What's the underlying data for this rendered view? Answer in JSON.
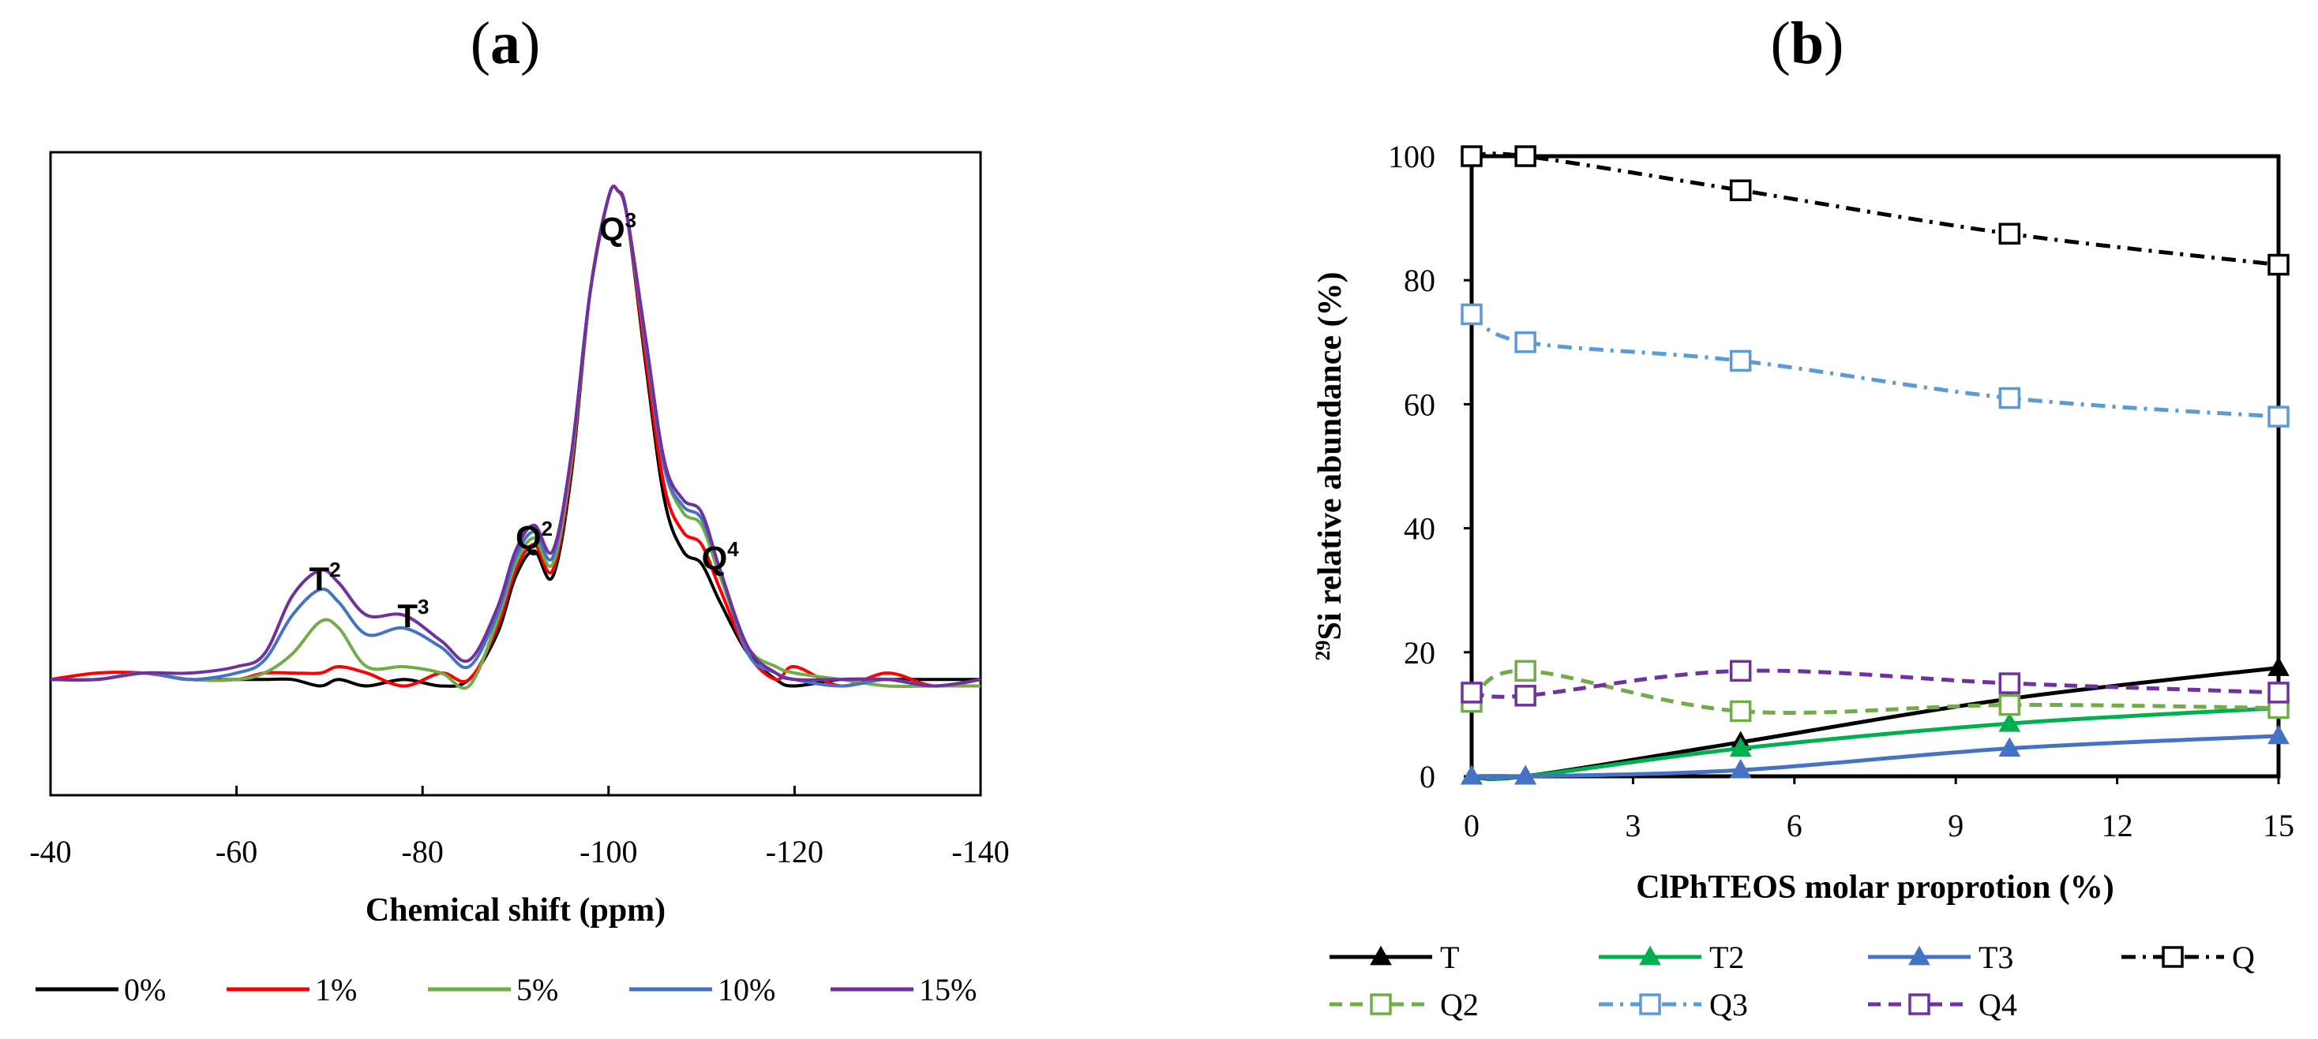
{
  "chart_data": [
    {
      "panel": "(a)",
      "panel_title_parts": [
        "(",
        "a",
        ")"
      ],
      "type": "line",
      "title": "(a)",
      "xlabel": "Chemical shift (ppm)",
      "ylabel": "",
      "xlim": [
        -40,
        -140
      ],
      "ylim": [
        0,
        1
      ],
      "xticks": [
        -40,
        -60,
        -80,
        -100,
        -120,
        -140
      ],
      "xtick_labels": [
        "-40",
        "-60",
        "-80",
        "-100",
        "-120",
        "-140"
      ],
      "grid": false,
      "legend_position": "bottom",
      "peak_annotations": [
        {
          "label": "T2",
          "base": "T",
          "sup": "2",
          "x": -69.5
        },
        {
          "label": "T3",
          "base": "T",
          "sup": "3",
          "x": -79
        },
        {
          "label": "Q2",
          "base": "Q",
          "sup": "2",
          "x": -92
        },
        {
          "label": "Q3",
          "base": "Q",
          "sup": "3",
          "x": -101
        },
        {
          "label": "Q4",
          "base": "Q",
          "sup": "4",
          "x": -112
        }
      ],
      "series": [
        {
          "name": "0%",
          "label": "0%",
          "color": "#000000",
          "x": [
            -40,
            -45,
            -50,
            -55,
            -60,
            -63,
            -66,
            -69,
            -71,
            -74,
            -78,
            -82,
            -85,
            -88,
            -90,
            -92,
            -94,
            -96,
            -98,
            -100,
            -101,
            -102,
            -104,
            -106,
            -108,
            -110,
            -112,
            -115,
            -118,
            -120,
            -125,
            -130,
            -135,
            -140
          ],
          "y": [
            0.18,
            0.18,
            0.19,
            0.18,
            0.18,
            0.18,
            0.18,
            0.17,
            0.18,
            0.17,
            0.18,
            0.17,
            0.18,
            0.25,
            0.34,
            0.38,
            0.34,
            0.5,
            0.78,
            0.93,
            0.94,
            0.9,
            0.67,
            0.46,
            0.38,
            0.36,
            0.3,
            0.22,
            0.18,
            0.17,
            0.18,
            0.18,
            0.18,
            0.18
          ]
        },
        {
          "name": "1%",
          "label": "1%",
          "color": "#ff0000",
          "x": [
            -40,
            -45,
            -50,
            -55,
            -60,
            -63,
            -66,
            -69,
            -71,
            -74,
            -78,
            -82,
            -85,
            -88,
            -90,
            -92,
            -94,
            -96,
            -98,
            -100,
            -101,
            -102,
            -104,
            -106,
            -108,
            -110,
            -112,
            -115,
            -118,
            -120,
            -125,
            -130,
            -135,
            -140
          ],
          "y": [
            0.18,
            0.19,
            0.19,
            0.18,
            0.18,
            0.19,
            0.19,
            0.19,
            0.2,
            0.19,
            0.17,
            0.19,
            0.18,
            0.26,
            0.35,
            0.39,
            0.35,
            0.51,
            0.78,
            0.93,
            0.94,
            0.9,
            0.68,
            0.48,
            0.41,
            0.39,
            0.32,
            0.22,
            0.18,
            0.2,
            0.17,
            0.19,
            0.17,
            0.18
          ]
        },
        {
          "name": "5%",
          "label": "5%",
          "color": "#70ad47",
          "x": [
            -40,
            -45,
            -50,
            -55,
            -60,
            -63,
            -66,
            -69,
            -71,
            -74,
            -78,
            -82,
            -85,
            -88,
            -90,
            -92,
            -94,
            -96,
            -98,
            -100,
            -101,
            -102,
            -104,
            -106,
            -108,
            -110,
            -112,
            -115,
            -118,
            -120,
            -125,
            -130,
            -135,
            -140
          ],
          "y": [
            0.18,
            0.18,
            0.19,
            0.18,
            0.18,
            0.19,
            0.22,
            0.27,
            0.26,
            0.2,
            0.2,
            0.19,
            0.17,
            0.27,
            0.36,
            0.4,
            0.36,
            0.52,
            0.78,
            0.93,
            0.94,
            0.9,
            0.7,
            0.51,
            0.44,
            0.42,
            0.34,
            0.23,
            0.2,
            0.19,
            0.18,
            0.17,
            0.17,
            0.17
          ]
        },
        {
          "name": "10%",
          "label": "10%",
          "color": "#4472c4",
          "x": [
            -40,
            -45,
            -50,
            -55,
            -60,
            -63,
            -66,
            -69,
            -71,
            -74,
            -78,
            -82,
            -85,
            -88,
            -90,
            -92,
            -94,
            -96,
            -98,
            -100,
            -101,
            -102,
            -104,
            -106,
            -108,
            -110,
            -112,
            -115,
            -118,
            -120,
            -125,
            -130,
            -135,
            -140
          ],
          "y": [
            0.18,
            0.18,
            0.19,
            0.18,
            0.19,
            0.21,
            0.28,
            0.32,
            0.3,
            0.25,
            0.26,
            0.23,
            0.2,
            0.28,
            0.37,
            0.41,
            0.37,
            0.53,
            0.78,
            0.93,
            0.94,
            0.9,
            0.7,
            0.51,
            0.45,
            0.43,
            0.35,
            0.22,
            0.19,
            0.18,
            0.17,
            0.18,
            0.17,
            0.18
          ]
        },
        {
          "name": "15%",
          "label": "15%",
          "color": "#7030a0",
          "x": [
            -40,
            -45,
            -50,
            -55,
            -60,
            -63,
            -66,
            -69,
            -71,
            -74,
            -78,
            -82,
            -85,
            -88,
            -90,
            -92,
            -94,
            -96,
            -98,
            -100,
            -101,
            -102,
            -104,
            -106,
            -108,
            -110,
            -112,
            -115,
            -118,
            -120,
            -125,
            -130,
            -135,
            -140
          ],
          "y": [
            0.18,
            0.18,
            0.19,
            0.19,
            0.2,
            0.22,
            0.31,
            0.35,
            0.33,
            0.28,
            0.28,
            0.24,
            0.21,
            0.29,
            0.38,
            0.42,
            0.38,
            0.53,
            0.78,
            0.93,
            0.94,
            0.9,
            0.71,
            0.52,
            0.46,
            0.44,
            0.35,
            0.23,
            0.19,
            0.18,
            0.18,
            0.18,
            0.17,
            0.18
          ]
        }
      ]
    },
    {
      "panel": "(b)",
      "panel_title_parts": [
        "(",
        "b",
        ")"
      ],
      "type": "line",
      "title": "(b)",
      "xlabel": "ClPhTEOS molar proprotion (%)",
      "ylabel_sup": "29",
      "ylabel_rest": "Si relative abundance (%)",
      "ylabel": "29Si relative abundance (%)",
      "x": [
        0,
        1,
        5,
        10,
        15
      ],
      "xlim": [
        0,
        15
      ],
      "ylim": [
        0,
        100
      ],
      "xticks": [
        0,
        3,
        6,
        9,
        12,
        15
      ],
      "xtick_labels": [
        "0",
        "3",
        "6",
        "9",
        "12",
        "15"
      ],
      "yticks": [
        0,
        20,
        40,
        60,
        80,
        100
      ],
      "ytick_labels": [
        "0",
        "20",
        "40",
        "60",
        "80",
        "100"
      ],
      "grid": false,
      "legend_position": "bottom",
      "series": [
        {
          "name": "T",
          "label": "T",
          "color": "#000000",
          "marker": "triangle",
          "dash": "solid",
          "values": [
            0,
            0,
            5.5,
            12.5,
            17.5
          ]
        },
        {
          "name": "T2",
          "label": "T2",
          "color": "#00b050",
          "marker": "triangle",
          "dash": "solid",
          "values": [
            0,
            0,
            4.5,
            8.5,
            11
          ]
        },
        {
          "name": "T3",
          "label": "T3",
          "color": "#4472c4",
          "marker": "triangle",
          "dash": "solid",
          "values": [
            0,
            0,
            1,
            4.5,
            6.5
          ]
        },
        {
          "name": "Q",
          "label": "Q",
          "color": "#000000",
          "marker": "square",
          "dash": "dashdot",
          "values": [
            100,
            100,
            94.5,
            87.5,
            82.5
          ]
        },
        {
          "name": "Q2",
          "label": "Q2",
          "color": "#70ad47",
          "marker": "square",
          "dash": "dash",
          "values": [
            12,
            17,
            10.5,
            11.5,
            11
          ]
        },
        {
          "name": "Q3",
          "label": "Q3",
          "color": "#5b9bd5",
          "marker": "square",
          "dash": "dashdot",
          "values": [
            74.5,
            70,
            67,
            61,
            58
          ]
        },
        {
          "name": "Q4",
          "label": "Q4",
          "color": "#7030a0",
          "marker": "square",
          "dash": "dash",
          "values": [
            13.5,
            13,
            17,
            15,
            13.5
          ]
        }
      ]
    }
  ]
}
